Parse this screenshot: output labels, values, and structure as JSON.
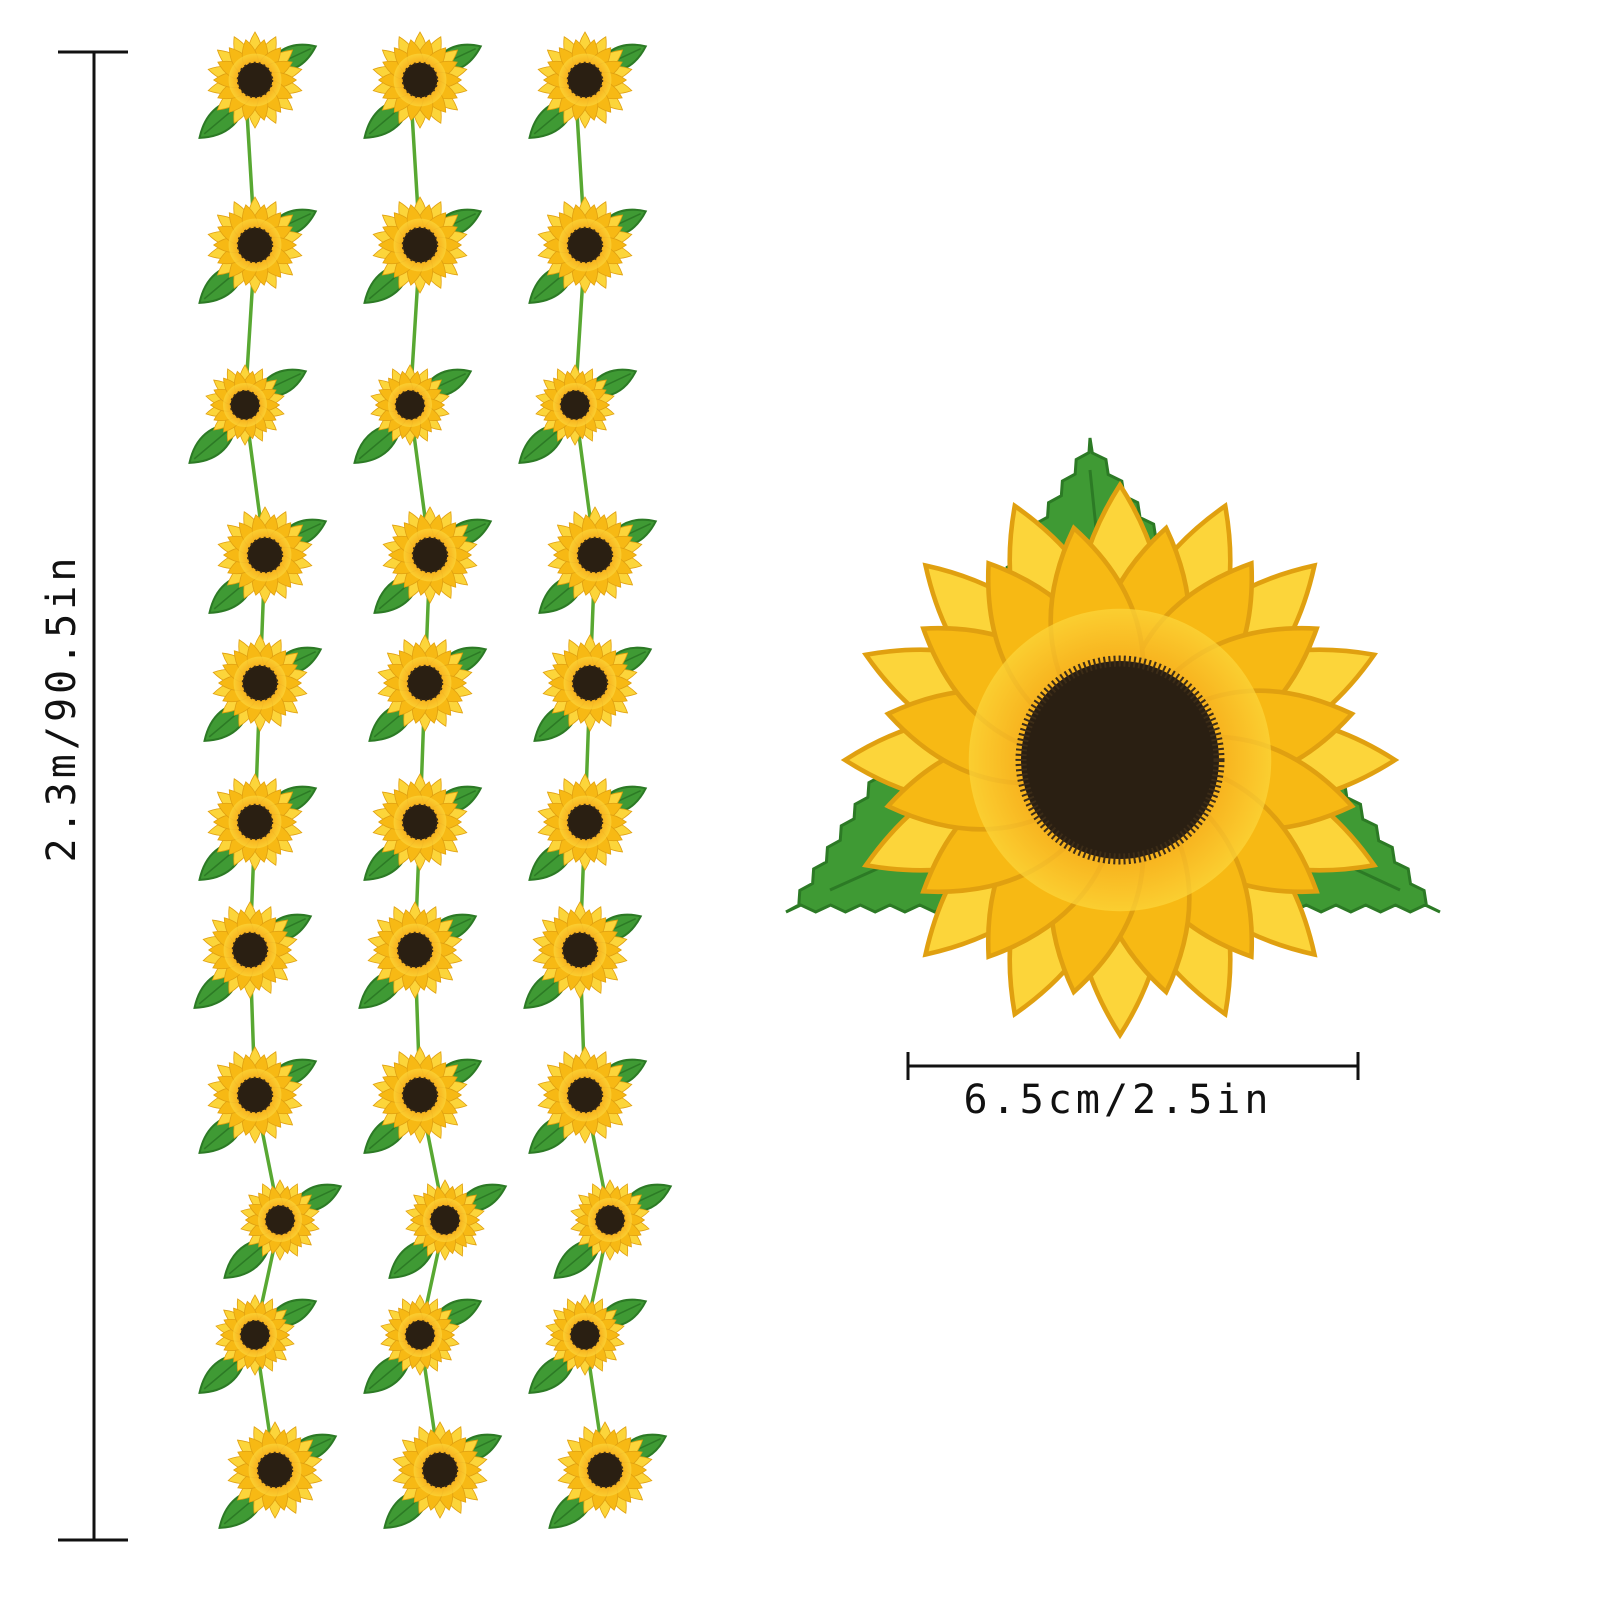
{
  "dimensions": {
    "height_label": "2.3m/90.5in",
    "width_label": "6.5cm/2.5in"
  },
  "product": {
    "garland_strands": 3,
    "flowers_per_strand": 11
  },
  "colors": {
    "petal": "#f7b914",
    "petal_light": "#fcd53a",
    "petal_inner": "#f07a10",
    "center": "#2a1f12",
    "leaf": "#3f9a34",
    "leaf_dark": "#2c7a25",
    "stem": "#58a832",
    "line": "#111111"
  },
  "icons": [
    "sunflower-icon",
    "leaf-icon"
  ]
}
